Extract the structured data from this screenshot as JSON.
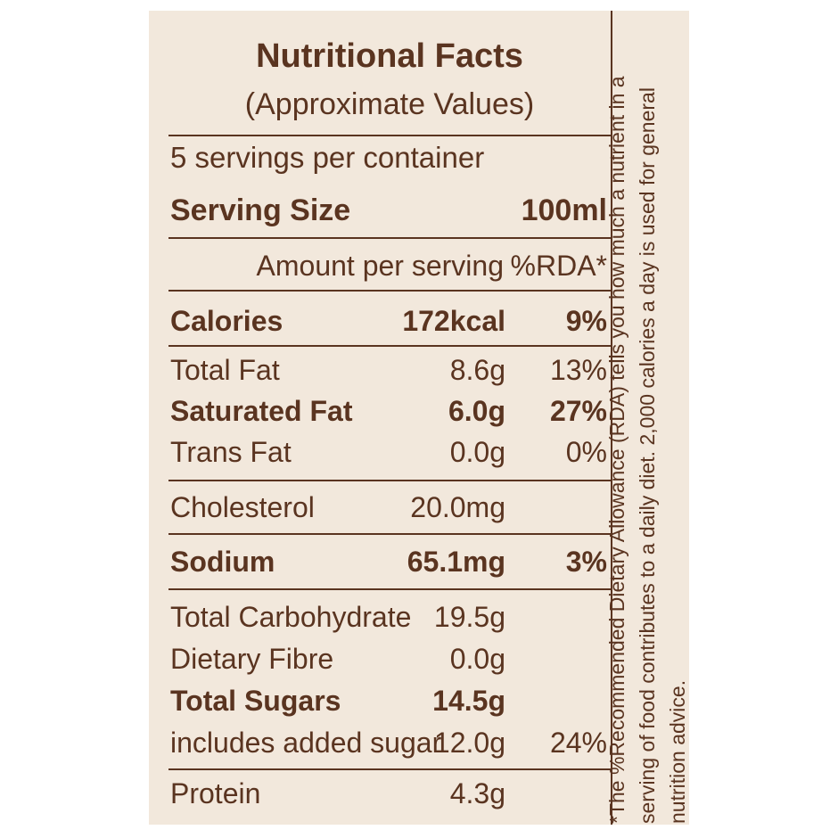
{
  "title": "Nutritional Facts",
  "subtitle": "(Approximate Values)",
  "servings_per_container": "5 servings per container",
  "serving_size": {
    "label": "Serving Size",
    "value": "100ml"
  },
  "columns": {
    "amount": "Amount per serving",
    "rda": "%RDA*"
  },
  "rows": [
    {
      "name": "Calories",
      "amount": "172kcal",
      "rda": "9%"
    },
    {
      "name": "Total Fat",
      "amount": "8.6g",
      "rda": "13%"
    },
    {
      "name": "Saturated Fat",
      "amount": "6.0g",
      "rda": "27%"
    },
    {
      "name": "Trans Fat",
      "amount": "0.0g",
      "rda": "0%"
    },
    {
      "name": "Cholesterol",
      "amount": "20.0mg",
      "rda": ""
    },
    {
      "name": "Sodium",
      "amount": "65.1mg",
      "rda": "3%"
    },
    {
      "name": "Total Carbohydrate",
      "amount": "19.5g",
      "rda": ""
    },
    {
      "name": "Dietary Fibre",
      "amount": "0.0g",
      "rda": ""
    },
    {
      "name": "Total Sugars",
      "amount": "14.5g",
      "rda": ""
    },
    {
      "name": "includes added sugar",
      "amount": "12.0g",
      "rda": "24%"
    },
    {
      "name": "Protein",
      "amount": "4.3g",
      "rda": ""
    }
  ],
  "footnote": "*The %Recommended Dietary Allowance (RDA) tells you how much a nutrient in a serving of food contributes to a daily diet. 2,000 calories a day is used for general nutrition advice.",
  "colors": {
    "background": "#f2e8dc",
    "text": "#5a3420"
  }
}
